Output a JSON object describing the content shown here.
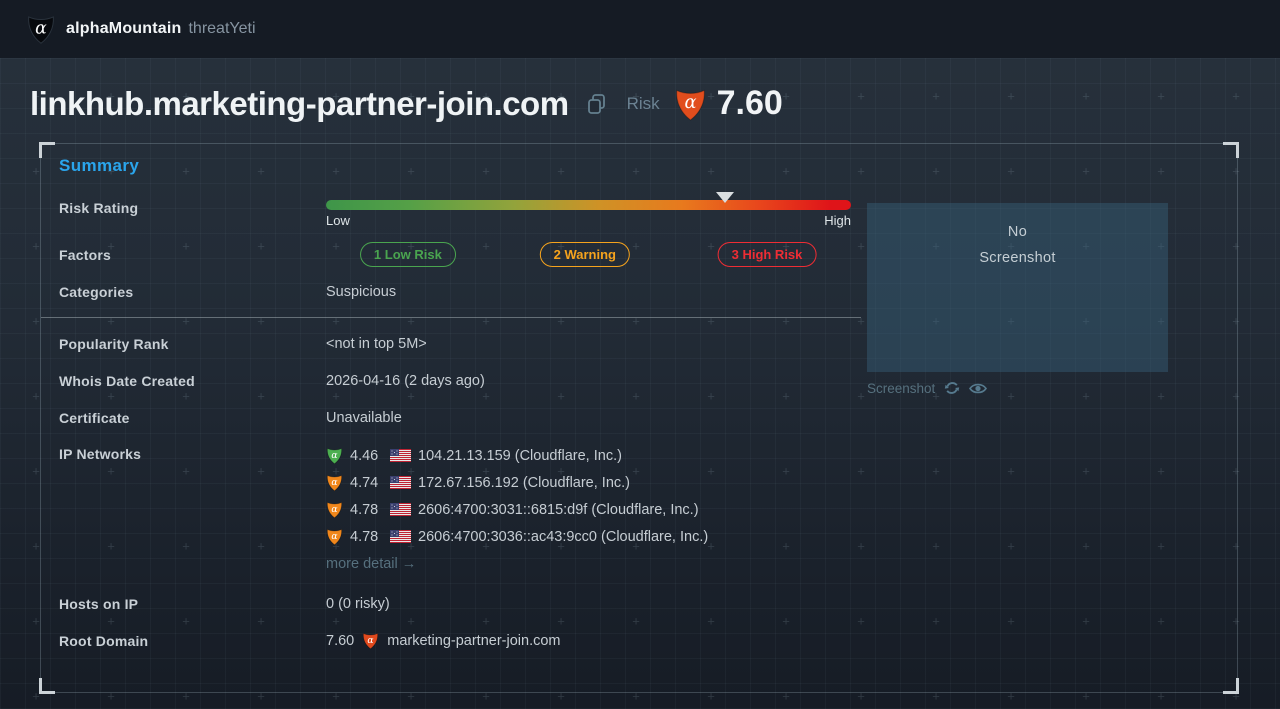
{
  "navbar": {
    "brand": "alphaMountain",
    "product": "threatYeti"
  },
  "header": {
    "domain": "linkhub.marketing-partner-join.com",
    "risk_label": "Risk",
    "risk_score": "7.60",
    "badge_color": "#e14d1d"
  },
  "summary": {
    "title": "Summary",
    "rows": {
      "risk_rating": {
        "label": "Risk Rating",
        "low_label": "Low",
        "high_label": "High",
        "score": 7.6,
        "scale_max": 10,
        "marker_percent": 76
      },
      "factors": {
        "label": "Factors",
        "pills": [
          {
            "text": "1 Low Risk",
            "color": "#4aa54f"
          },
          {
            "text": "2 Warning",
            "color": "#f5a31d"
          },
          {
            "text": "3 High Risk",
            "color": "#ef2d34"
          }
        ]
      },
      "categories": {
        "label": "Categories",
        "value": "Suspicious"
      },
      "popularity_rank": {
        "label": "Popularity Rank",
        "value": "<not in top 5M>"
      },
      "whois_date_created": {
        "label": "Whois Date Created",
        "value": "2026-04-16 (2 days ago)"
      },
      "certificate": {
        "label": "Certificate",
        "value": "Unavailable"
      },
      "ip_networks": {
        "label": "IP Networks",
        "items": [
          {
            "score": "4.46",
            "level_color": "#4caf50",
            "address": "104.21.13.159 (Cloudflare, Inc.)"
          },
          {
            "score": "4.74",
            "level_color": "#f0871c",
            "address": "172.67.156.192 (Cloudflare, Inc.)"
          },
          {
            "score": "4.78",
            "level_color": "#f0871c",
            "address": "2606:4700:3031::6815:d9f (Cloudflare, Inc.)"
          },
          {
            "score": "4.78",
            "level_color": "#f0871c",
            "address": "2606:4700:3036::ac43:9cc0 (Cloudflare, Inc.)"
          }
        ],
        "more_link": "more detail →"
      },
      "hosts_on_ip": {
        "label": "Hosts on IP",
        "value": "0 (0 risky)"
      },
      "root_domain": {
        "label": "Root Domain",
        "score": "7.60",
        "badge_color": "#e0491d",
        "domain": "marketing-partner-join.com"
      }
    },
    "screenshot": {
      "empty_line1": "No",
      "empty_line2": "Screenshot",
      "caption": "Screenshot"
    }
  },
  "colors": {
    "accent_blue": "#2aa5ec",
    "navbar_bg": "#151b24",
    "risk_gradient": [
      "#3e9549",
      "#93a33b",
      "#e8791d",
      "#df1419"
    ],
    "screenshot_box_bg": "#3a637e"
  }
}
